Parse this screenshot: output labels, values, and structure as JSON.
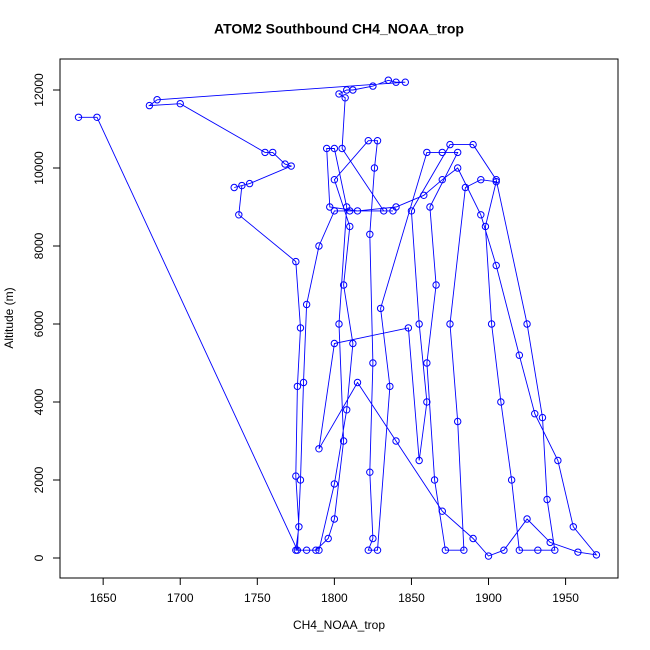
{
  "chart_data": {
    "type": "line",
    "title": "ATOM2 Southbound CH4_NOAA_trop",
    "x_label": "CH4_NOAA_trop",
    "y_label": "Altitude (m)",
    "color": "#0000ff",
    "marker": "open-circle",
    "xlim": [
      1622,
      1984
    ],
    "ylim": [
      -513,
      12795
    ],
    "xticks": [
      1650,
      1700,
      1750,
      1800,
      1850,
      1900,
      1950
    ],
    "yticks": [
      0,
      2000,
      4000,
      6000,
      8000,
      10000,
      12000
    ],
    "series": [
      {
        "name": "CH4_NOAA_trop",
        "x": [
          1634,
          1646,
          1776,
          1778,
          1780,
          1782,
          1790,
          1800,
          1810,
          1838,
          1832,
          1805,
          1807,
          1803,
          1808,
          1812,
          1825,
          1835,
          1840,
          1846,
          1685,
          1680,
          1700,
          1755,
          1760,
          1768,
          1772,
          1745,
          1735,
          1740,
          1738,
          1775,
          1778,
          1776,
          1775,
          1777,
          1775,
          1782,
          1790,
          1800,
          1808,
          1812,
          1806,
          1810,
          1800,
          1822,
          1828,
          1826,
          1823,
          1825,
          1823,
          1825,
          1822,
          1828,
          1836,
          1830,
          1860,
          1870,
          1880,
          1862,
          1866,
          1860,
          1865,
          1872,
          1884,
          1880,
          1875,
          1885,
          1895,
          1905,
          1898,
          1902,
          1908,
          1915,
          1920,
          1932,
          1943,
          1938,
          1935,
          1925,
          1905,
          1890,
          1875,
          1850,
          1855,
          1860,
          1855,
          1848,
          1800,
          1790,
          1815,
          1840,
          1870,
          1890,
          1900,
          1910,
          1925,
          1940,
          1958,
          1970,
          1955,
          1945,
          1930,
          1920,
          1905,
          1895,
          1880,
          1870,
          1858,
          1840,
          1815,
          1797,
          1795,
          1800,
          1808,
          1803,
          1806,
          1800,
          1796,
          1788
        ],
        "values": [
          11300,
          11300,
          200,
          2000,
          4500,
          6500,
          8000,
          8900,
          8900,
          8900,
          8900,
          10500,
          11800,
          11900,
          12000,
          12000,
          12100,
          12250,
          12200,
          12200,
          11750,
          11600,
          11650,
          10400,
          10400,
          10100,
          10050,
          9600,
          9500,
          9550,
          8800,
          7600,
          5900,
          4400,
          2100,
          800,
          200,
          200,
          200,
          1900,
          3800,
          5500,
          7000,
          8500,
          9700,
          10700,
          10700,
          10000,
          8300,
          5000,
          2200,
          500,
          200,
          200,
          4400,
          6400,
          10400,
          10400,
          10400,
          9000,
          7000,
          5000,
          2000,
          200,
          200,
          3500,
          6000,
          9500,
          9700,
          9650,
          8500,
          6000,
          4000,
          2000,
          200,
          200,
          200,
          1500,
          3600,
          6000,
          9700,
          10600,
          10600,
          8900,
          6000,
          4000,
          2500,
          5900,
          5500,
          2800,
          4500,
          3000,
          1200,
          500,
          50,
          200,
          1000,
          400,
          150,
          80,
          800,
          2500,
          3700,
          5200,
          7500,
          8800,
          10000,
          9700,
          9300,
          9000,
          8900,
          9000,
          10500,
          10500,
          9000,
          6000,
          3000,
          1000,
          500,
          200
        ]
      }
    ]
  }
}
